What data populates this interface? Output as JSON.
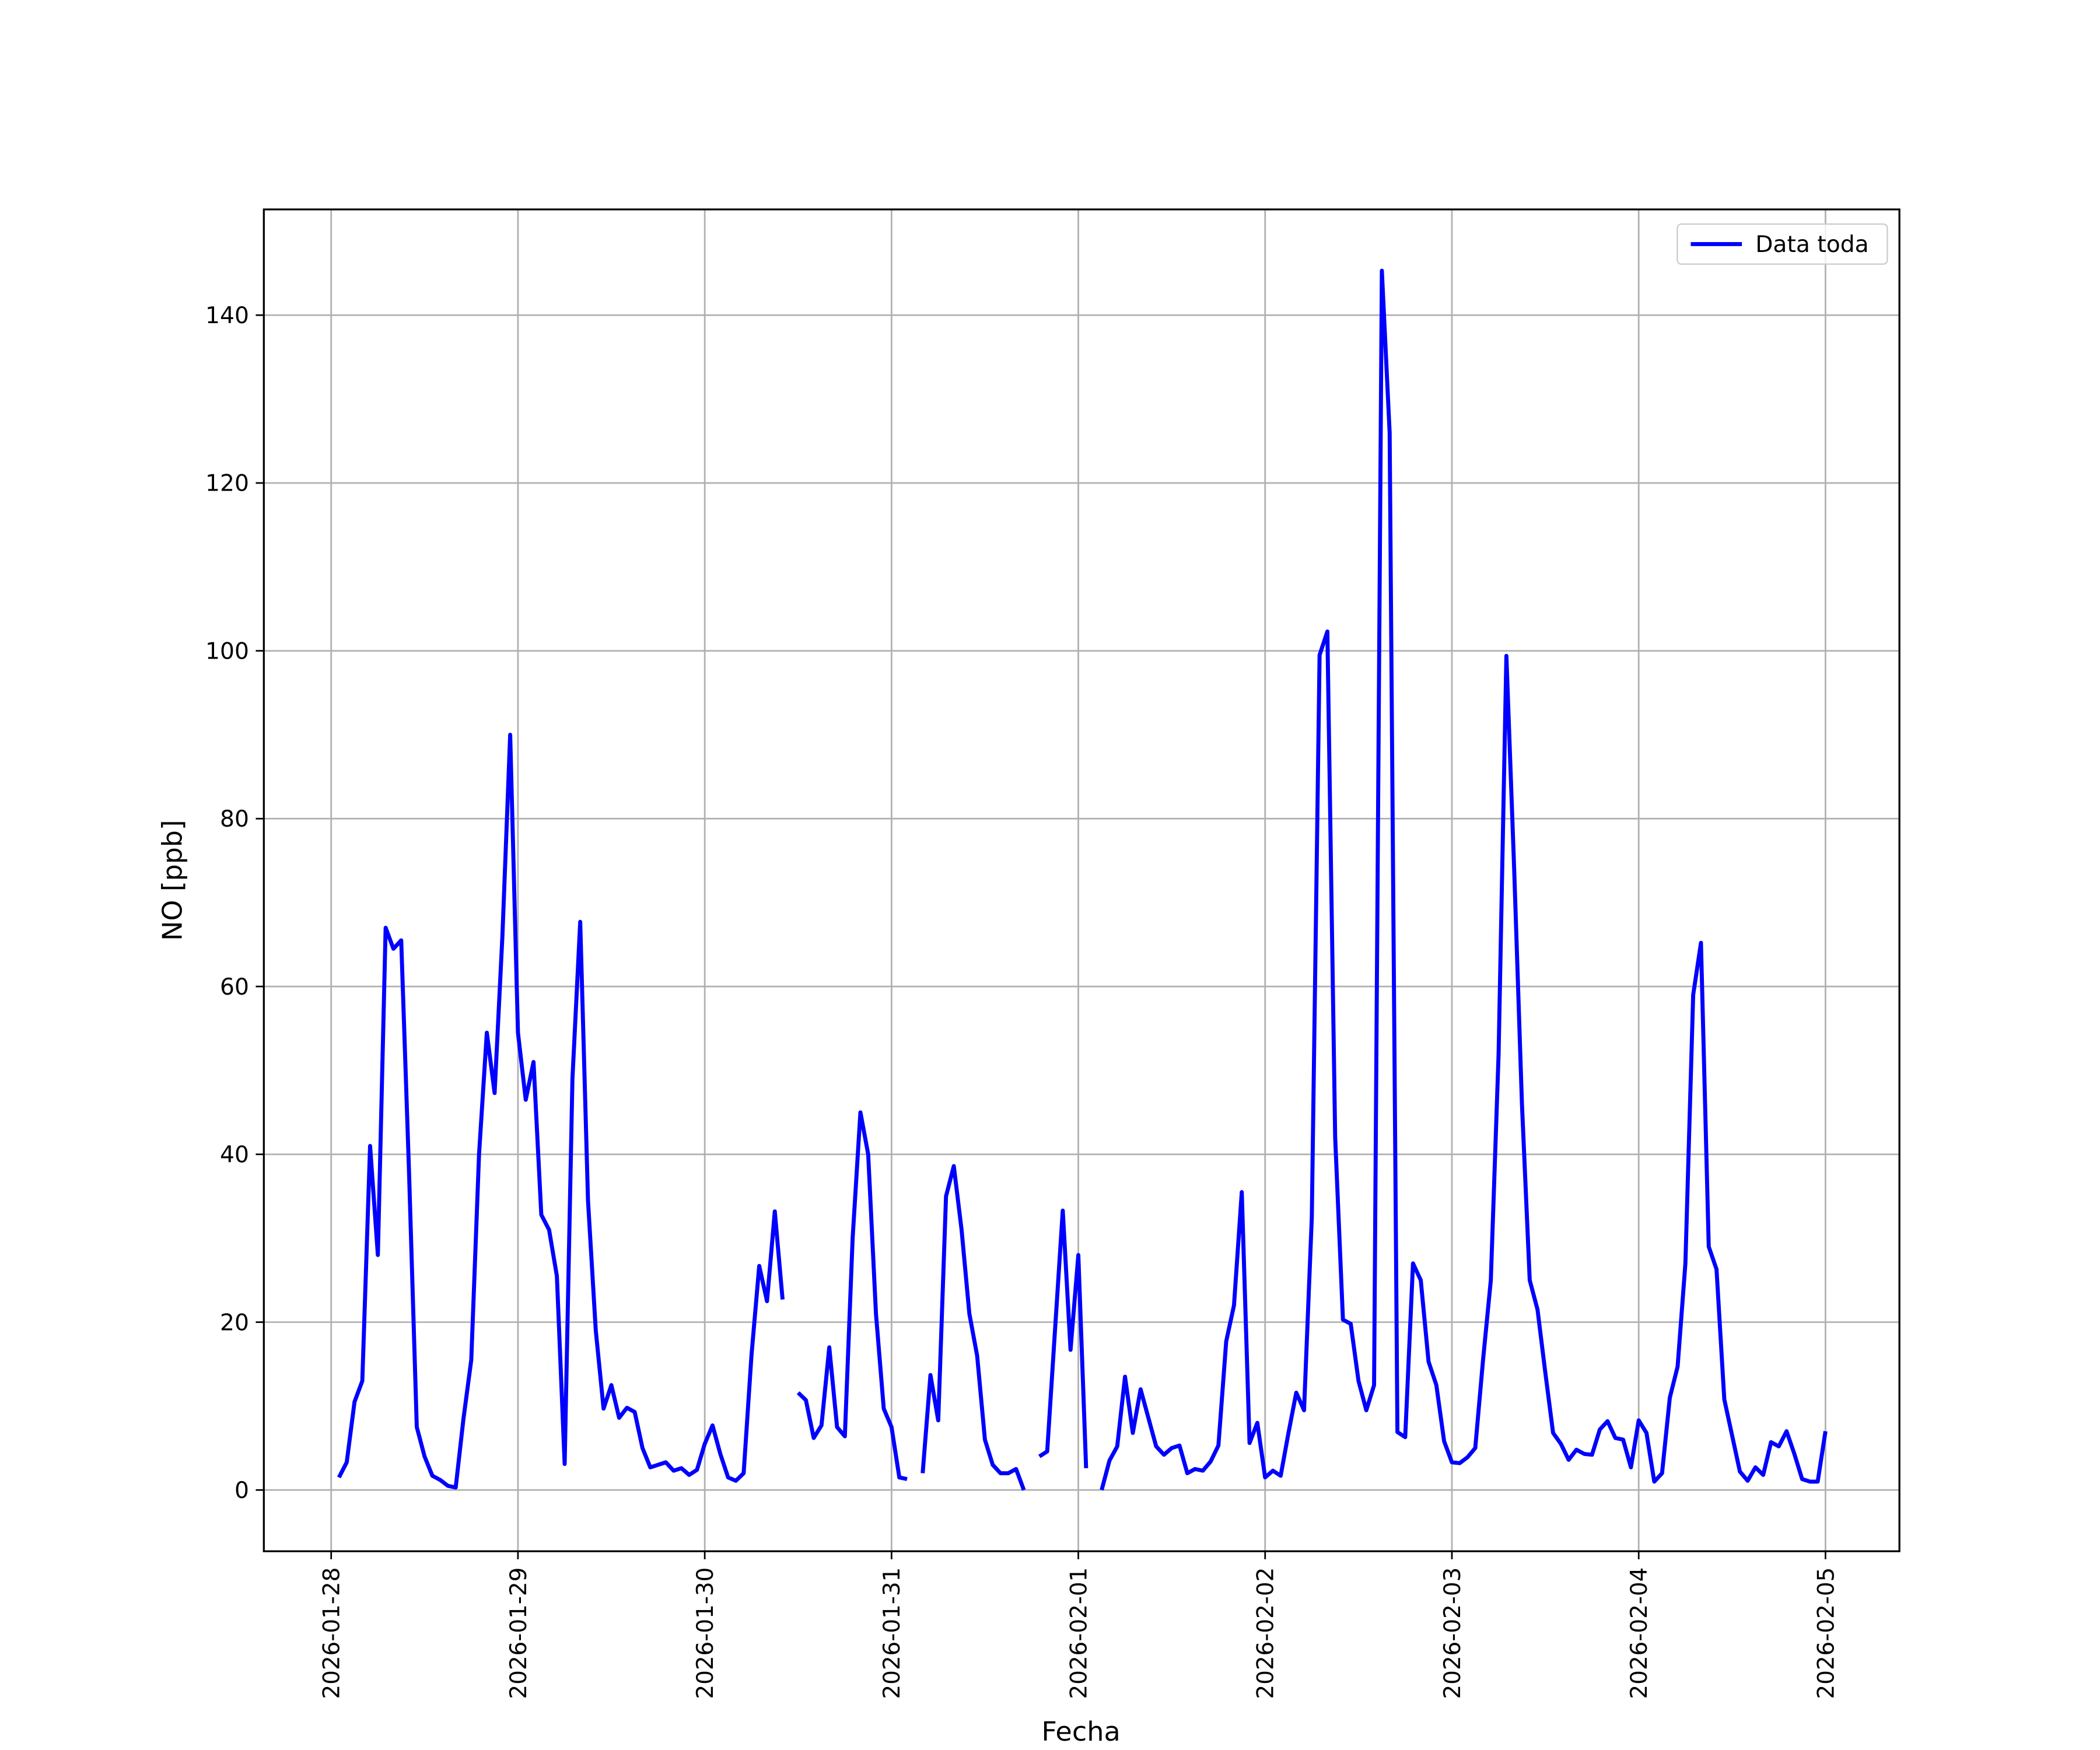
{
  "chart_data": {
    "type": "line",
    "xlabel": "Fecha",
    "ylabel": "NO [ppb]",
    "x": [
      1,
      2,
      3,
      4,
      5,
      6,
      7,
      8,
      9,
      10,
      11,
      12,
      13,
      14,
      15,
      16,
      17,
      18,
      19,
      20,
      21,
      22,
      23,
      24,
      25,
      26,
      27,
      28,
      29,
      30,
      31,
      32,
      33,
      34,
      35,
      36,
      37,
      38,
      39,
      40,
      41,
      42,
      43,
      44,
      45,
      46,
      47,
      48,
      49,
      50,
      51,
      52,
      53,
      54,
      55,
      56,
      57,
      58,
      59,
      60,
      61,
      62,
      63,
      64,
      65,
      66,
      67,
      68,
      69,
      70,
      71,
      72,
      73,
      74,
      75,
      76,
      77,
      78,
      79,
      80,
      81,
      82,
      83,
      84,
      85,
      86,
      87,
      88,
      89,
      90,
      91,
      92,
      93,
      94,
      95,
      96,
      97,
      98,
      99,
      100,
      101,
      102,
      103,
      104,
      105,
      106,
      107,
      108,
      109,
      110,
      111,
      112,
      113,
      114,
      115,
      116,
      117,
      118,
      119,
      120,
      121,
      122,
      123,
      124,
      125,
      126,
      127,
      128,
      129,
      130,
      131,
      132,
      133,
      134,
      135,
      136,
      137,
      138,
      139,
      140,
      141,
      142,
      143,
      144,
      145,
      146,
      147,
      148,
      149,
      150,
      151,
      152,
      153,
      154,
      155,
      156,
      157,
      158,
      159,
      160,
      161,
      162,
      163,
      164,
      165,
      166,
      167,
      168,
      169,
      170,
      171,
      172,
      173,
      174,
      175,
      176,
      177,
      178,
      179,
      180,
      181,
      182,
      183,
      184,
      185,
      186,
      187,
      188,
      189,
      190,
      191,
      192
    ],
    "series": [
      {
        "name": "Data toda",
        "color": "#0000ff",
        "values": [
          1.5,
          3.3,
          10.5,
          13,
          41,
          28,
          67,
          64.5,
          65.5,
          38,
          7.5,
          4,
          1.7,
          1.2,
          0.5,
          0.3,
          8.5,
          15.5,
          40,
          54.5,
          47.3,
          66,
          90,
          54.5,
          46.5,
          51,
          32.8,
          31,
          25.5,
          3.1,
          49,
          67.7,
          34.5,
          19,
          9.7,
          12.5,
          8.6,
          9.8,
          9.3,
          5,
          2.7,
          3,
          3.3,
          2.3,
          2.6,
          1.8,
          2.4,
          5.5,
          7.7,
          4.3,
          1.5,
          1.1,
          2,
          16,
          26.7,
          22.5,
          33.2,
          22.7,
          null,
          11.6,
          10.7,
          6.2,
          7.7,
          17,
          7.5,
          6.4,
          30,
          45,
          40,
          21,
          9.7,
          7.5,
          1.5,
          1.3,
          null,
          2,
          13.7,
          8.3,
          35,
          38.6,
          31,
          21,
          16,
          6,
          3,
          2,
          2,
          2.5,
          0,
          null,
          4,
          4.6,
          19,
          33.3,
          16.7,
          28,
          2.6,
          null,
          0,
          3.5,
          5.2,
          13.5,
          6.8,
          12,
          8.6,
          5.2,
          4.2,
          5,
          5.3,
          2,
          2.5,
          2.3,
          3.4,
          5.3,
          17.7,
          22,
          35.5,
          5.6,
          8,
          1.5,
          2.3,
          1.7,
          6.8,
          11.6,
          9.5,
          32.5,
          99.5,
          102.3,
          42,
          20.3,
          19.8,
          13,
          9.5,
          12.5,
          145.3,
          126,
          6.9,
          6.3,
          27,
          25,
          15.3,
          12.5,
          5.8,
          3.3,
          3.2,
          3.9,
          5,
          15.5,
          25,
          52,
          99.4,
          74,
          46,
          25,
          21.5,
          14,
          6.8,
          5.5,
          3.6,
          4.8,
          4.3,
          4.2,
          7.2,
          8.2,
          6.2,
          6,
          2.7,
          8.3,
          6.8,
          1,
          2,
          11,
          14.7,
          27,
          59,
          65.2,
          29,
          26.3,
          10.8,
          6.5,
          2.2,
          1.1,
          2.7,
          1.8,
          5.7,
          5.2,
          7,
          4.3,
          1.3,
          1,
          1,
          7
        ]
      }
    ],
    "xlim": [
      -8.65,
      201.5
    ],
    "ylim": [
      -7.3,
      152.6
    ],
    "xticks": [
      {
        "value": 0,
        "label": "2026-01-28"
      },
      {
        "value": 24,
        "label": "2026-01-29"
      },
      {
        "value": 48,
        "label": "2026-01-30"
      },
      {
        "value": 72,
        "label": "2026-01-31"
      },
      {
        "value": 96,
        "label": "2026-02-01"
      },
      {
        "value": 120,
        "label": "2026-02-02"
      },
      {
        "value": 144,
        "label": "2026-02-03"
      },
      {
        "value": 168,
        "label": "2026-02-04"
      },
      {
        "value": 192,
        "label": "2026-02-05"
      }
    ],
    "yticks": [
      0,
      20,
      40,
      60,
      80,
      100,
      120,
      140
    ],
    "grid": true,
    "legend": "upper right"
  }
}
